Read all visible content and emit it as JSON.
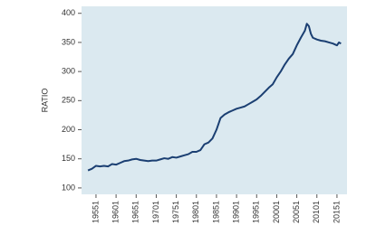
{
  "chart_data": {
    "type": "line",
    "y_label": "RATIO",
    "x": [
      1953,
      1954,
      1955,
      1956,
      1957,
      1958,
      1959,
      1960,
      1961,
      1962,
      1963,
      1964,
      1965,
      1966,
      1967,
      1968,
      1969,
      1970,
      1971,
      1972,
      1973,
      1974,
      1975,
      1976,
      1977,
      1978,
      1979,
      1980,
      1981,
      1982,
      1983,
      1984,
      1985,
      1986,
      1987,
      1988,
      1989,
      1990,
      1991,
      1992,
      1993,
      1994,
      1995,
      1996,
      1997,
      1998,
      1999,
      2000,
      2001,
      2002,
      2003,
      2004,
      2005,
      2006,
      2007,
      2007.5,
      2008,
      2008.5,
      2009,
      2010,
      2011,
      2012,
      2013,
      2014,
      2015,
      2015.5,
      2016
    ],
    "series": [
      {
        "name": "RATIO",
        "color": "#1b3f72",
        "values": [
          130,
          133,
          138,
          137,
          138,
          137,
          141,
          140,
          143,
          146,
          147,
          149,
          150,
          148,
          147,
          146,
          147,
          147,
          149,
          151,
          150,
          153,
          152,
          154,
          156,
          158,
          162,
          162,
          165,
          175,
          178,
          185,
          200,
          220,
          226,
          230,
          233,
          236,
          238,
          240,
          244,
          248,
          252,
          258,
          265,
          272,
          278,
          290,
          300,
          312,
          322,
          330,
          345,
          358,
          370,
          382,
          378,
          365,
          358,
          355,
          353,
          352,
          350,
          348,
          345,
          350,
          348
        ]
      }
    ],
    "xlim": [
      1951.4,
      2017.5
    ],
    "xticks": [
      {
        "value": 1955,
        "label": "19551"
      },
      {
        "value": 1960,
        "label": "19601"
      },
      {
        "value": 1965,
        "label": "19651"
      },
      {
        "value": 1970,
        "label": "19701"
      },
      {
        "value": 1975,
        "label": "19751"
      },
      {
        "value": 1980,
        "label": "19801"
      },
      {
        "value": 1985,
        "label": "19851"
      },
      {
        "value": 1990,
        "label": "19901"
      },
      {
        "value": 1995,
        "label": "19951"
      },
      {
        "value": 2000,
        "label": "20001"
      },
      {
        "value": 2005,
        "label": "20051"
      },
      {
        "value": 2010,
        "label": "20101"
      },
      {
        "value": 2015,
        "label": "20151"
      }
    ],
    "ylim": [
      89,
      412
    ],
    "yticks": [
      100,
      150,
      200,
      250,
      300,
      350,
      400
    ],
    "plot_background": "#dbe9f0"
  }
}
